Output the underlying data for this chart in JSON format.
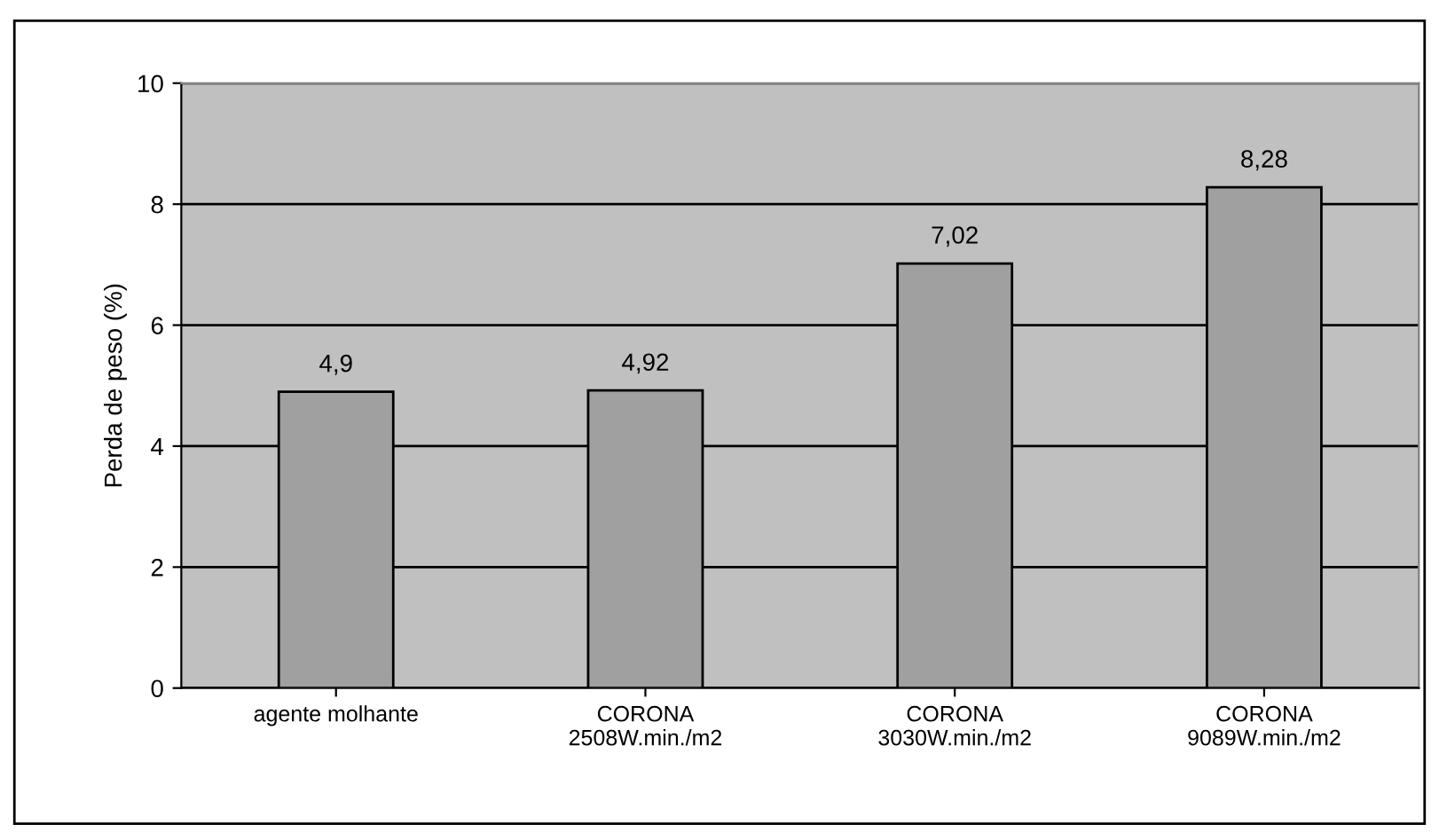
{
  "chart_data": {
    "type": "bar",
    "ylabel": "Perda de peso (%)",
    "categories": [
      "agente molhante",
      "CORONA\n2508W.min./m2",
      "CORONA\n3030W.min./m2",
      "CORONA\n9089W.min./m2"
    ],
    "values": [
      4.9,
      4.92,
      7.02,
      8.28
    ],
    "color": "#a0a0a0",
    "value_labels": [
      "4,9",
      "4,92",
      "7,02",
      "8,28"
    ],
    "ylim": [
      0,
      10
    ],
    "yticks": [
      0,
      2,
      4,
      6,
      8,
      10
    ],
    "grid": "y"
  }
}
